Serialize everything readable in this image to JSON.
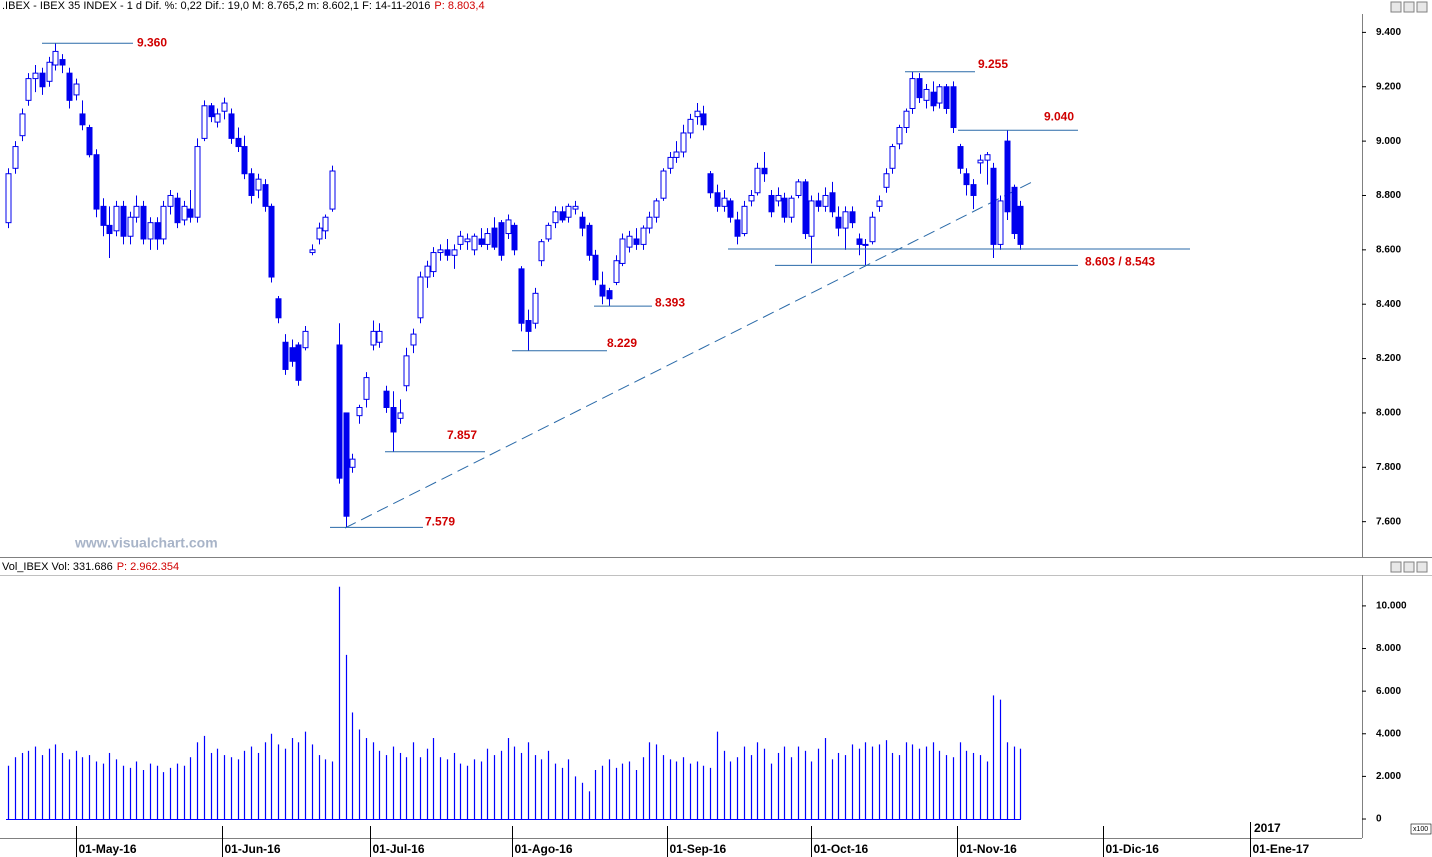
{
  "chart_data": [
    {
      "type": "candlestick",
      "title": ".IBEX - IBEX 35 INDEX - 1 d Dif. %: 0,22 Dif.: 19,0 M: 8.765,2 m: 8.602,1 F: 14-11-2016",
      "title_price": "P: 8.803,4",
      "watermark": "www.visualchart.com",
      "color": "#0000ee",
      "xlim": [
        -1.2,
        200.6
      ],
      "ylim": [
        7470,
        9475
      ],
      "yticks": [
        {
          "value": 7600,
          "label": "7.600"
        },
        {
          "value": 7800,
          "label": "7.800"
        },
        {
          "value": 8000,
          "label": "8.000"
        },
        {
          "value": 8200,
          "label": "8.200"
        },
        {
          "value": 8400,
          "label": "8.400"
        },
        {
          "value": 8600,
          "label": "8.600"
        },
        {
          "value": 8800,
          "label": "8.800"
        },
        {
          "value": 9000,
          "label": "9.000"
        },
        {
          "value": 9200,
          "label": "9.200"
        },
        {
          "value": 9400,
          "label": "9.400"
        }
      ],
      "annotations": [
        {
          "label": "9.360",
          "values": [
            9360
          ]
        },
        {
          "label": "9.255",
          "values": [
            9255
          ]
        },
        {
          "label": "9.040",
          "values": [
            9040
          ]
        },
        {
          "label": "8.603 / 8.543",
          "values": [
            8603,
            8543
          ]
        },
        {
          "label": "8.393",
          "values": [
            8393
          ]
        },
        {
          "label": "8.229",
          "values": [
            8229
          ]
        },
        {
          "label": "7.857",
          "values": [
            7857
          ]
        },
        {
          "label": "7.579",
          "values": [
            7579
          ]
        }
      ],
      "ohlc": [
        [
          8700,
          8900,
          8680,
          8880
        ],
        [
          8900,
          9000,
          8880,
          8980
        ],
        [
          9020,
          9120,
          9000,
          9100
        ],
        [
          9150,
          9250,
          9130,
          9230
        ],
        [
          9230,
          9280,
          9180,
          9250
        ],
        [
          9250,
          9270,
          9170,
          9200
        ],
        [
          9220,
          9310,
          9200,
          9290
        ],
        [
          9280,
          9360,
          9260,
          9330
        ],
        [
          9300,
          9320,
          9250,
          9280
        ],
        [
          9250,
          9270,
          9120,
          9150
        ],
        [
          9170,
          9230,
          9150,
          9210
        ],
        [
          9100,
          9150,
          9040,
          9060
        ],
        [
          9050,
          9060,
          8940,
          8950
        ],
        [
          8950,
          8970,
          8720,
          8750
        ],
        [
          8760,
          8790,
          8650,
          8690
        ],
        [
          8690,
          8760,
          8570,
          8660
        ],
        [
          8670,
          8780,
          8650,
          8760
        ],
        [
          8760,
          8780,
          8620,
          8650
        ],
        [
          8650,
          8740,
          8620,
          8720
        ],
        [
          8720,
          8800,
          8700,
          8760
        ],
        [
          8760,
          8780,
          8620,
          8640
        ],
        [
          8640,
          8720,
          8600,
          8700
        ],
        [
          8700,
          8720,
          8600,
          8640
        ],
        [
          8640,
          8780,
          8620,
          8760
        ],
        [
          8760,
          8820,
          8730,
          8800
        ],
        [
          8790,
          8810,
          8680,
          8700
        ],
        [
          8710,
          8780,
          8690,
          8760
        ],
        [
          8750,
          8820,
          8700,
          8720
        ],
        [
          8720,
          9010,
          8700,
          8980
        ],
        [
          9010,
          9150,
          9000,
          9130
        ],
        [
          9130,
          9140,
          9070,
          9090
        ],
        [
          9070,
          9120,
          9050,
          9100
        ],
        [
          9110,
          9160,
          9080,
          9140
        ],
        [
          9100,
          9120,
          8990,
          9010
        ],
        [
          9010,
          9050,
          8960,
          8980
        ],
        [
          8980,
          9020,
          8860,
          8880
        ],
        [
          8880,
          8900,
          8770,
          8800
        ],
        [
          8820,
          8880,
          8790,
          8860
        ],
        [
          8840,
          8860,
          8740,
          8760
        ],
        [
          8760,
          8770,
          8480,
          8500
        ],
        [
          8420,
          8430,
          8330,
          8350
        ],
        [
          8260,
          8290,
          8140,
          8160
        ],
        [
          8240,
          8270,
          8170,
          8190
        ],
        [
          8250,
          8260,
          8100,
          8120
        ],
        [
          8240,
          8320,
          8230,
          8300
        ],
        [
          8590,
          8620,
          8580,
          8600
        ],
        [
          8640,
          8700,
          8620,
          8680
        ],
        [
          8670,
          8730,
          8640,
          8720
        ],
        [
          8750,
          8910,
          8740,
          8890
        ],
        [
          8250,
          8330,
          7740,
          7760
        ],
        [
          8000,
          8000,
          7579,
          7620
        ],
        [
          7800,
          7850,
          7780,
          7830
        ],
        [
          7990,
          8030,
          7960,
          8020
        ],
        [
          8050,
          8150,
          8020,
          8130
        ],
        [
          8250,
          8340,
          8230,
          8300
        ],
        [
          8260,
          8330,
          8240,
          8300
        ],
        [
          8080,
          8100,
          8000,
          8020
        ],
        [
          8020,
          8080,
          7857,
          7930
        ],
        [
          7980,
          8050,
          7960,
          8000
        ],
        [
          8100,
          8240,
          8080,
          8210
        ],
        [
          8250,
          8310,
          8220,
          8290
        ],
        [
          8350,
          8520,
          8330,
          8500
        ],
        [
          8500,
          8560,
          8460,
          8540
        ],
        [
          8520,
          8610,
          8500,
          8590
        ],
        [
          8590,
          8620,
          8560,
          8600
        ],
        [
          8600,
          8640,
          8560,
          8580
        ],
        [
          8580,
          8620,
          8530,
          8600
        ],
        [
          8620,
          8670,
          8600,
          8650
        ],
        [
          8630,
          8660,
          8600,
          8640
        ],
        [
          8600,
          8660,
          8580,
          8650
        ],
        [
          8640,
          8680,
          8610,
          8620
        ],
        [
          8620,
          8680,
          8600,
          8660
        ],
        [
          8680,
          8720,
          8600,
          8610
        ],
        [
          8700,
          8710,
          8560,
          8580
        ],
        [
          8660,
          8730,
          8640,
          8710
        ],
        [
          8690,
          8700,
          8580,
          8600
        ],
        [
          8530,
          8540,
          8300,
          8330
        ],
        [
          8340,
          8380,
          8229,
          8300
        ],
        [
          8330,
          8460,
          8310,
          8440
        ],
        [
          8560,
          8640,
          8540,
          8630
        ],
        [
          8640,
          8700,
          8630,
          8690
        ],
        [
          8700,
          8760,
          8680,
          8740
        ],
        [
          8740,
          8760,
          8700,
          8710
        ],
        [
          8720,
          8770,
          8700,
          8760
        ],
        [
          8750,
          8780,
          8730,
          8760
        ],
        [
          8720,
          8740,
          8650,
          8680
        ],
        [
          8690,
          8700,
          8560,
          8580
        ],
        [
          8580,
          8600,
          8470,
          8490
        ],
        [
          8470,
          8520,
          8400,
          8430
        ],
        [
          8450,
          8460,
          8393,
          8420
        ],
        [
          8480,
          8580,
          8470,
          8560
        ],
        [
          8550,
          8660,
          8540,
          8640
        ],
        [
          8610,
          8670,
          8590,
          8650
        ],
        [
          8640,
          8680,
          8600,
          8620
        ],
        [
          8620,
          8690,
          8600,
          8680
        ],
        [
          8680,
          8740,
          8660,
          8720
        ],
        [
          8720,
          8790,
          8700,
          8780
        ],
        [
          8790,
          8900,
          8780,
          8890
        ],
        [
          8900,
          8960,
          8880,
          8940
        ],
        [
          8940,
          9000,
          8920,
          8960
        ],
        [
          8960,
          9060,
          8940,
          9030
        ],
        [
          9030,
          9100,
          9010,
          9080
        ],
        [
          9090,
          9140,
          9060,
          9110
        ],
        [
          9100,
          9130,
          9040,
          9060
        ],
        [
          8880,
          8890,
          8790,
          8810
        ],
        [
          8810,
          8840,
          8740,
          8760
        ],
        [
          8760,
          8820,
          8740,
          8790
        ],
        [
          8780,
          8790,
          8700,
          8720
        ],
        [
          8710,
          8740,
          8620,
          8650
        ],
        [
          8660,
          8780,
          8650,
          8760
        ],
        [
          8780,
          8820,
          8760,
          8800
        ],
        [
          8810,
          8920,
          8800,
          8900
        ],
        [
          8900,
          8960,
          8850,
          8880
        ],
        [
          8800,
          8820,
          8720,
          8740
        ],
        [
          8780,
          8830,
          8760,
          8800
        ],
        [
          8790,
          8810,
          8700,
          8720
        ],
        [
          8720,
          8800,
          8700,
          8790
        ],
        [
          8800,
          8860,
          8790,
          8850
        ],
        [
          8850,
          8860,
          8640,
          8660
        ],
        [
          8650,
          8800,
          8550,
          8780
        ],
        [
          8780,
          8810,
          8740,
          8760
        ],
        [
          8760,
          8830,
          8740,
          8800
        ],
        [
          8810,
          8850,
          8720,
          8740
        ],
        [
          8720,
          8760,
          8650,
          8680
        ],
        [
          8680,
          8760,
          8600,
          8740
        ],
        [
          8740,
          8760,
          8680,
          8700
        ],
        [
          8640,
          8660,
          8580,
          8620
        ],
        [
          8620,
          8640,
          8543,
          8620
        ],
        [
          8630,
          8740,
          8620,
          8720
        ],
        [
          8760,
          8800,
          8740,
          8780
        ],
        [
          8830,
          8900,
          8810,
          8880
        ],
        [
          8900,
          8990,
          8880,
          8980
        ],
        [
          8990,
          9060,
          8970,
          9050
        ],
        [
          9050,
          9120,
          9030,
          9110
        ],
        [
          9120,
          9255,
          9100,
          9230
        ],
        [
          9230,
          9250,
          9140,
          9160
        ],
        [
          9150,
          9210,
          9120,
          9190
        ],
        [
          9180,
          9220,
          9110,
          9130
        ],
        [
          9140,
          9210,
          9120,
          9200
        ],
        [
          9200,
          9210,
          9100,
          9120
        ],
        [
          9200,
          9220,
          9030,
          9050
        ],
        [
          8980,
          8990,
          8880,
          8900
        ],
        [
          8880,
          8900,
          8800,
          8840
        ],
        [
          8840,
          8860,
          8750,
          8800
        ],
        [
          8920,
          8950,
          8880,
          8930
        ],
        [
          8930,
          8960,
          8840,
          8950
        ],
        [
          8900,
          8920,
          8570,
          8620
        ],
        [
          8620,
          8800,
          8600,
          8780
        ],
        [
          9000,
          9040,
          8710,
          8740
        ],
        [
          8830,
          8840,
          8640,
          8660
        ],
        [
          8760,
          8780,
          8600,
          8620
        ]
      ]
    },
    {
      "type": "bar",
      "title": "Vol_IBEX Vol: 331.686",
      "title_price": "P: 2.962.354",
      "unit": "x100",
      "year_label": "2017",
      "color": "#0000ff",
      "xlim": [
        -1.2,
        200.6
      ],
      "ylim": [
        -750,
        11450
      ],
      "yticks": [
        0,
        {
          "value": 2000,
          "label": "2.000"
        },
        {
          "value": 4000,
          "label": "4.000"
        },
        {
          "value": 6000,
          "label": "6.000"
        },
        {
          "value": 8000,
          "label": "8.000"
        },
        {
          "value": 10000,
          "label": "10.000"
        }
      ],
      "xticks": [
        {
          "value": 10,
          "label": "01-May-16"
        },
        {
          "value": 31.7,
          "label": "01-Jun-16"
        },
        {
          "value": 53.6,
          "label": "01-Jul-16"
        },
        {
          "value": 74.7,
          "label": "01-Ago-16"
        },
        {
          "value": 97.6,
          "label": "01-Sep-16"
        },
        {
          "value": 119,
          "label": "01-Oct-16"
        },
        {
          "value": 140.6,
          "label": "01-Nov-16"
        },
        {
          "value": 162.2,
          "label": "01-Dic-16"
        },
        {
          "value": 184,
          "label": "01-Ene-17"
        }
      ],
      "values": [
        2500,
        2900,
        3100,
        3200,
        3400,
        3000,
        3300,
        3500,
        3100,
        2800,
        3200,
        2900,
        3000,
        2700,
        2600,
        3100,
        2800,
        2500,
        2400,
        2700,
        2300,
        2600,
        2500,
        2200,
        2400,
        2600,
        2500,
        2900,
        3600,
        3900,
        3100,
        3300,
        3000,
        2900,
        2800,
        3200,
        3400,
        3100,
        3600,
        4000,
        3500,
        3300,
        3800,
        3600,
        4100,
        3500,
        3000,
        2800,
        2700,
        10900,
        7700,
        5000,
        4200,
        3800,
        3600,
        3200,
        3000,
        3400,
        3100,
        2900,
        3600,
        2900,
        3300,
        3800,
        2900,
        2800,
        3100,
        2600,
        2500,
        2800,
        2700,
        3300,
        3000,
        3200,
        3800,
        3400,
        3100,
        3600,
        3000,
        2800,
        3200,
        2600,
        2400,
        2800,
        2000,
        1700,
        1300,
        2300,
        2500,
        2800,
        2400,
        2600,
        2700,
        2300,
        2900,
        3600,
        3500,
        3000,
        2800,
        2700,
        2900,
        2600,
        2700,
        2500,
        2400,
        4100,
        3200,
        2700,
        2900,
        3400,
        3000,
        3600,
        3300,
        2600,
        3100,
        3400,
        2900,
        3400,
        3200,
        2700,
        3300,
        3800,
        2800,
        3100,
        3000,
        3500,
        3300,
        3600,
        3400,
        3500,
        3700,
        3100,
        3000,
        3600,
        3500,
        3300,
        3400,
        3600,
        3200,
        3000,
        2900,
        3600,
        3200,
        3100,
        3000,
        2700,
        5800,
        5600,
        3600,
        3400,
        3300
      ]
    }
  ]
}
